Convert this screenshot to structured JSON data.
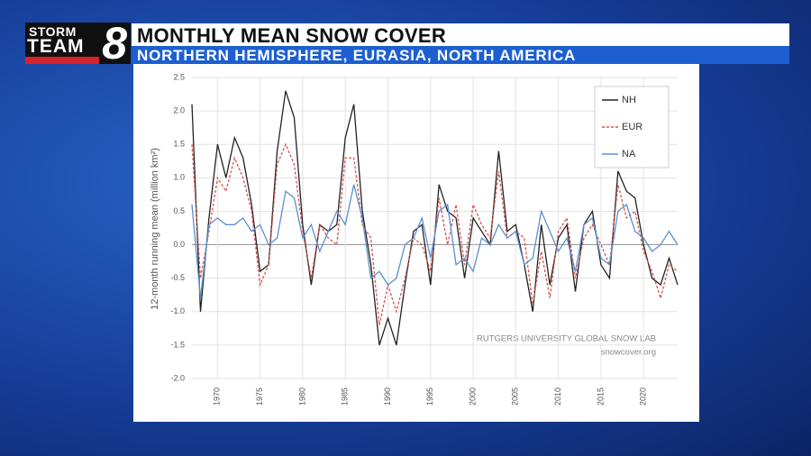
{
  "header": {
    "storm": "STORM",
    "team": "TEAM",
    "number": "8",
    "title": "MONTHLY MEAN SNOW COVER",
    "subtitle": "NORTHERN HEMISPHERE, EURASIA, NORTH AMERICA"
  },
  "chart_data": {
    "type": "line",
    "ylabel": "12-month running mean (million km²)",
    "annotations": [
      "RUTGERS UNIVERSITY GLOBAL SNOW LAB",
      "snowcover.org"
    ],
    "x": [
      1967,
      1968,
      1969,
      1970,
      1971,
      1972,
      1973,
      1974,
      1975,
      1976,
      1977,
      1978,
      1979,
      1980,
      1981,
      1982,
      1983,
      1984,
      1985,
      1986,
      1987,
      1988,
      1989,
      1990,
      1991,
      1992,
      1993,
      1994,
      1995,
      1996,
      1997,
      1998,
      1999,
      2000,
      2001,
      2002,
      2003,
      2004,
      2005,
      2006,
      2007,
      2008,
      2009,
      2010,
      2011,
      2012,
      2013,
      2014,
      2015,
      2016,
      2017,
      2018,
      2019,
      2020,
      2021,
      2022,
      2023,
      2024
    ],
    "series": [
      {
        "name": "NH",
        "color": "#222222",
        "linestyle": "solid",
        "values": [
          2.1,
          -1.0,
          0.4,
          1.5,
          1.0,
          1.6,
          1.3,
          0.6,
          -0.4,
          -0.3,
          1.4,
          2.3,
          1.9,
          0.3,
          -0.6,
          0.3,
          0.2,
          0.3,
          1.6,
          2.1,
          0.5,
          -0.3,
          -1.5,
          -1.1,
          -1.5,
          -0.6,
          0.2,
          0.3,
          -0.6,
          0.9,
          0.5,
          0.4,
          -0.5,
          0.4,
          0.2,
          0.0,
          1.4,
          0.2,
          0.3,
          -0.3,
          -1.0,
          0.3,
          -0.6,
          0.1,
          0.3,
          -0.7,
          0.3,
          0.5,
          -0.3,
          -0.5,
          1.1,
          0.8,
          0.7,
          0.0,
          -0.5,
          -0.6,
          -0.2,
          -0.6
        ]
      },
      {
        "name": "EUR",
        "color": "#d9534f",
        "linestyle": "dashed",
        "values": [
          1.5,
          -0.5,
          0.2,
          1.0,
          0.8,
          1.3,
          1.0,
          0.5,
          -0.6,
          -0.3,
          1.2,
          1.5,
          1.2,
          0.2,
          -0.5,
          0.3,
          0.1,
          0.0,
          1.3,
          1.3,
          0.3,
          0.1,
          -1.2,
          -0.6,
          -1.0,
          -0.5,
          0.1,
          0.0,
          -0.4,
          0.7,
          0.0,
          0.6,
          -0.3,
          0.6,
          0.3,
          0.1,
          1.1,
          0.1,
          0.2,
          0.1,
          -0.9,
          -0.1,
          -0.8,
          0.2,
          0.4,
          -0.5,
          0.1,
          0.3,
          0.0,
          -0.3,
          0.9,
          0.4,
          0.5,
          -0.1,
          -0.4,
          -0.8,
          -0.3,
          -0.4
        ]
      },
      {
        "name": "NA",
        "color": "#5b8fd1",
        "linestyle": "solid",
        "values": [
          0.6,
          -0.8,
          0.3,
          0.4,
          0.3,
          0.3,
          0.4,
          0.2,
          0.3,
          0.0,
          0.1,
          0.8,
          0.7,
          0.1,
          0.3,
          -0.1,
          0.2,
          0.5,
          0.3,
          0.9,
          0.4,
          -0.5,
          -0.4,
          -0.6,
          -0.5,
          0.0,
          0.1,
          0.4,
          -0.2,
          0.5,
          0.6,
          -0.3,
          -0.2,
          -0.4,
          0.1,
          0.0,
          0.3,
          0.1,
          0.2,
          -0.3,
          -0.2,
          0.5,
          0.2,
          -0.1,
          0.1,
          -0.4,
          0.3,
          0.4,
          -0.2,
          -0.3,
          0.5,
          0.6,
          0.2,
          0.1,
          -0.1,
          0.0,
          0.2,
          0.0
        ]
      }
    ],
    "xlim": [
      1967,
      2024
    ],
    "ylim": [
      -2,
      2.5
    ],
    "xticks": [
      1970,
      1975,
      1980,
      1985,
      1990,
      1995,
      2000,
      2005,
      2010,
      2015,
      2020
    ],
    "yticks": [
      2.5,
      {
        "value": 2,
        "label": "2.0"
      },
      1.5,
      {
        "value": 1,
        "label": "1.0"
      },
      0.5,
      {
        "value": 0,
        "label": "0.0"
      },
      -0.5,
      {
        "value": -1,
        "label": "-1.0"
      },
      -1.5,
      {
        "value": -2,
        "label": "-2.0"
      }
    ],
    "grid": true,
    "legend": "upper right"
  }
}
